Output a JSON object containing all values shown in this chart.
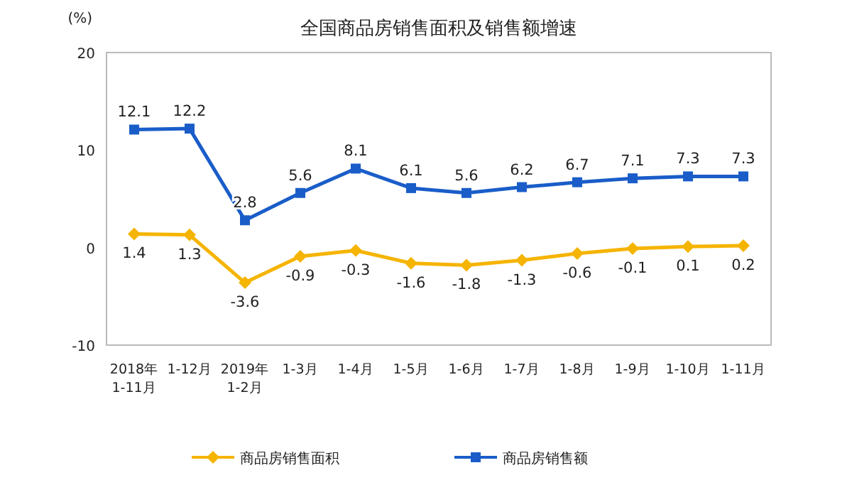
{
  "chart_data": {
    "type": "line",
    "title": "全国商品房销售面积及销售额增速",
    "ylabel": "(%)",
    "categories": [
      "2018年\n1-11月",
      "1-12月",
      "2019年\n1-2月",
      "1-3月",
      "1-4月",
      "1-5月",
      "1-6月",
      "1-7月",
      "1-8月",
      "1-9月",
      "1-10月",
      "1-11月"
    ],
    "series": [
      {
        "name": "商品房销售面积",
        "color": "#f5b400",
        "marker": "diamond",
        "values": [
          1.4,
          1.3,
          -3.6,
          -0.9,
          -0.3,
          -1.6,
          -1.8,
          -1.3,
          -0.6,
          -0.1,
          0.1,
          0.2
        ]
      },
      {
        "name": "商品房销售额",
        "color": "#1a5dc9",
        "marker": "square",
        "values": [
          12.1,
          12.2,
          2.8,
          5.6,
          8.1,
          6.1,
          5.6,
          6.2,
          6.7,
          7.1,
          7.3,
          7.3
        ]
      }
    ],
    "ylim": [
      -10,
      20
    ],
    "yticks": [
      -10,
      0,
      10,
      20
    ],
    "data_labels": true,
    "legend": "bottom",
    "grid": false
  }
}
